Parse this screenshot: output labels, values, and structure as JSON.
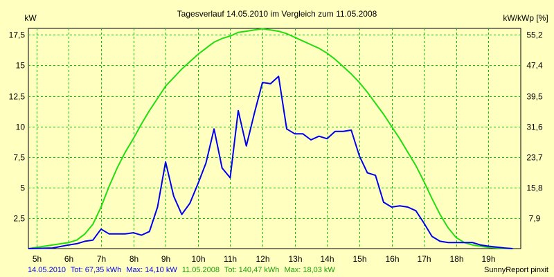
{
  "chart_data": {
    "type": "line",
    "title": "Tagesverlauf 14.05.2010 im Vergleich zum 11.05.2008",
    "ylabel_left": "kW",
    "ylabel_right": "kW/kWp [%]",
    "ylim": [
      0,
      18.03
    ],
    "y_ticks": [
      2.5,
      5,
      7.5,
      10,
      12.5,
      15,
      17.5
    ],
    "y_tick_labels": [
      "2,5",
      "5",
      "7,5",
      "10",
      "12,5",
      "15",
      "17,5"
    ],
    "y2_ticks": [
      7.9,
      15.8,
      23.7,
      31.6,
      39.5,
      47.4,
      55.2
    ],
    "y2_tick_labels": [
      "7,9",
      "15,8",
      "23,7",
      "31,6",
      "39,5",
      "47,4",
      "55,2"
    ],
    "xlim": [
      4.75,
      20.0
    ],
    "x_ticks": [
      5,
      6,
      7,
      8,
      9,
      10,
      11,
      12,
      13,
      14,
      15,
      16,
      17,
      18,
      19
    ],
    "x_tick_labels": [
      "5h",
      "6h",
      "7h",
      "8h",
      "9h",
      "10h",
      "11h",
      "12h",
      "13h",
      "14h",
      "15h",
      "16h",
      "17h",
      "18h",
      "19h"
    ],
    "grid": true,
    "series": [
      {
        "name": "14.05.2010",
        "color": "#0000ee",
        "x": [
          4.75,
          5.5,
          6.0,
          6.25,
          6.5,
          6.75,
          7.0,
          7.25,
          7.5,
          7.75,
          8.0,
          8.25,
          8.5,
          8.75,
          9.0,
          9.25,
          9.5,
          9.75,
          10.0,
          10.25,
          10.5,
          10.75,
          11.0,
          11.25,
          11.5,
          11.75,
          12.0,
          12.25,
          12.5,
          12.75,
          13.0,
          13.25,
          13.5,
          13.75,
          14.0,
          14.25,
          14.5,
          14.75,
          15.0,
          15.25,
          15.5,
          15.75,
          16.0,
          16.25,
          16.5,
          16.75,
          17.0,
          17.25,
          17.5,
          17.75,
          18.0,
          18.25,
          18.5,
          18.75,
          19.0,
          19.5,
          19.75
        ],
        "y": [
          0,
          0.05,
          0.3,
          0.4,
          0.6,
          0.7,
          1.6,
          1.2,
          1.2,
          1.2,
          1.3,
          1.1,
          1.4,
          3.4,
          7.1,
          4.3,
          2.8,
          3.7,
          5.3,
          7.0,
          9.8,
          6.6,
          5.8,
          11.3,
          8.4,
          11.1,
          13.6,
          13.5,
          14.1,
          9.8,
          9.4,
          9.4,
          8.9,
          9.2,
          9.0,
          9.6,
          9.6,
          9.7,
          7.6,
          6.2,
          6.0,
          3.8,
          3.4,
          3.5,
          3.4,
          3.1,
          2.1,
          1.0,
          0.6,
          0.5,
          0.5,
          0.5,
          0.5,
          0.3,
          0.2,
          0.05,
          0
        ]
      },
      {
        "name": "11.05.2008",
        "color": "#22dd11",
        "x": [
          4.75,
          5.5,
          6.0,
          6.25,
          6.5,
          6.75,
          7.0,
          7.25,
          7.5,
          7.75,
          8.0,
          8.25,
          8.5,
          8.75,
          9.0,
          9.25,
          9.5,
          9.75,
          10.0,
          10.25,
          10.5,
          10.75,
          11.0,
          11.25,
          11.5,
          11.75,
          12.0,
          12.25,
          12.5,
          12.75,
          13.0,
          13.25,
          13.5,
          13.75,
          14.0,
          14.25,
          14.5,
          14.75,
          15.0,
          15.25,
          15.5,
          15.75,
          16.0,
          16.25,
          16.5,
          16.75,
          17.0,
          17.25,
          17.5,
          17.75,
          18.0,
          18.25,
          18.5,
          18.75,
          19.0,
          19.5,
          19.75
        ],
        "y": [
          0,
          0.3,
          0.5,
          0.7,
          1.2,
          2.0,
          3.4,
          5.1,
          6.6,
          7.9,
          9.0,
          10.2,
          11.3,
          12.3,
          13.3,
          14.0,
          14.7,
          15.3,
          15.9,
          16.4,
          16.9,
          17.2,
          17.4,
          17.7,
          17.8,
          17.9,
          18.0,
          17.9,
          17.8,
          17.6,
          17.3,
          17.0,
          16.7,
          16.4,
          16.0,
          15.5,
          14.9,
          14.3,
          13.6,
          12.8,
          11.9,
          11.0,
          10.0,
          9.0,
          7.9,
          6.8,
          5.5,
          4.1,
          2.8,
          1.7,
          0.9,
          0.5,
          0.3,
          0.2,
          0.1,
          0.02,
          0
        ]
      }
    ]
  },
  "legend": {
    "series1_label": "14.05.2010",
    "series1_tot": "Tot: 67,35 kWh",
    "series1_max": "Max: 14,10 kW",
    "series2_label": "11.05.2008",
    "series2_tot": "Tot: 140,47 kWh",
    "series2_max": "Max: 18,03 kW"
  },
  "footer_credit": "SunnyReport pinxit"
}
